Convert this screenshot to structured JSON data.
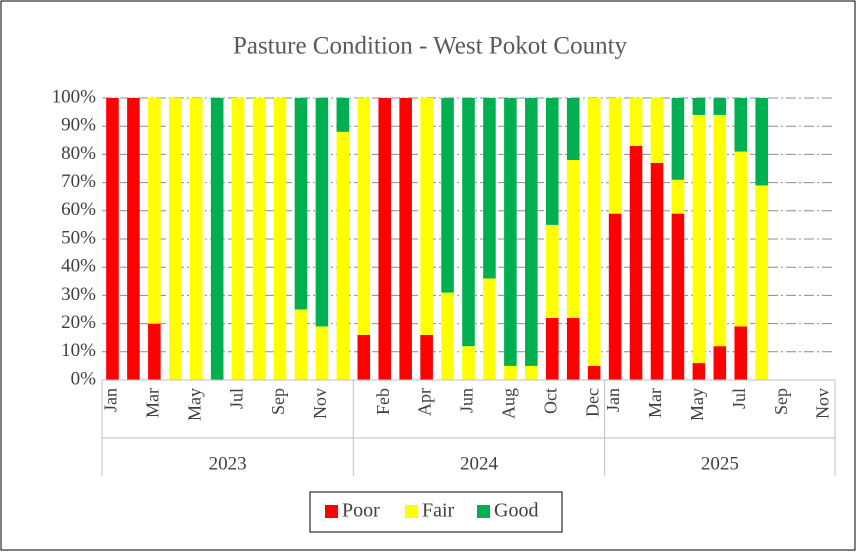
{
  "chart_data": {
    "type": "stacked_bar",
    "title": "Pasture Condition - West Pokot County",
    "groups": [
      {
        "name": "2023",
        "categories": [
          "Jan",
          null,
          "Mar",
          null,
          "May",
          null,
          "Jul",
          null,
          "Sep",
          null,
          "Nov",
          null
        ]
      },
      {
        "name": "2024",
        "categories": [
          null,
          "Feb",
          null,
          "Apr",
          null,
          "Jun",
          null,
          "Aug",
          null,
          "Oct",
          null,
          "Dec"
        ]
      },
      {
        "name": "2025",
        "categories": [
          "Jan",
          null,
          "Mar",
          null,
          "May",
          null,
          "Jul",
          null,
          "Sep",
          null,
          "Nov"
        ]
      }
    ],
    "series": [
      {
        "name": "Poor",
        "color": "#ff0000",
        "values": [
          100,
          100,
          20,
          0,
          0,
          0,
          0,
          0,
          0,
          0,
          0,
          0,
          16,
          100,
          100,
          16,
          0,
          0,
          0,
          0,
          0,
          22,
          22,
          5,
          59,
          83,
          77,
          59,
          6,
          12,
          19,
          0,
          0,
          0,
          0
        ]
      },
      {
        "name": "Fair",
        "color": "#ffff00",
        "values": [
          0,
          0,
          80,
          100,
          100,
          0,
          100,
          100,
          100,
          25,
          19,
          88,
          84,
          0,
          0,
          84,
          31,
          12,
          36,
          5,
          5,
          33,
          56,
          95,
          41,
          17,
          23,
          12,
          88,
          82,
          62,
          69,
          0,
          0,
          0
        ]
      },
      {
        "name": "Good",
        "color": "#00b050",
        "values": [
          0,
          0,
          0,
          0,
          0,
          100,
          0,
          0,
          0,
          75,
          81,
          12,
          0,
          0,
          0,
          0,
          69,
          88,
          64,
          95,
          95,
          45,
          22,
          0,
          0,
          0,
          0,
          29,
          6,
          6,
          19,
          31,
          0,
          0,
          0
        ]
      }
    ],
    "ylim": [
      0,
      100
    ],
    "yticks": [
      {
        "value": 0,
        "label": "0%"
      },
      {
        "value": 10,
        "label": "10%"
      },
      {
        "value": 20,
        "label": "20%"
      },
      {
        "value": 30,
        "label": "30%"
      },
      {
        "value": 40,
        "label": "40%"
      },
      {
        "value": 50,
        "label": "50%"
      },
      {
        "value": 60,
        "label": "60%"
      },
      {
        "value": 70,
        "label": "70%"
      },
      {
        "value": 80,
        "label": "80%"
      },
      {
        "value": 90,
        "label": "90%"
      },
      {
        "value": 100,
        "label": "100%"
      }
    ],
    "grid": true,
    "legend": "bottom"
  }
}
